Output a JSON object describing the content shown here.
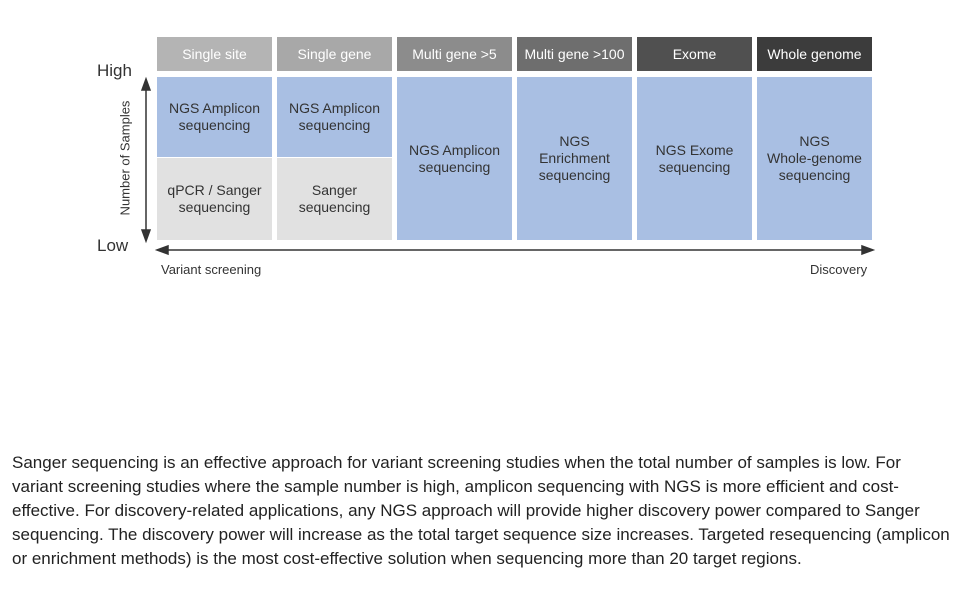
{
  "diagram": {
    "y_axis": {
      "high": "High",
      "low": "Low",
      "title": "Number of Samples"
    },
    "x_axis": {
      "left": "Variant screening",
      "right": "Discovery"
    },
    "columns": [
      {
        "header": "Single site",
        "header_color": "#b4b4b4",
        "top": "NGS Amplicon\nsequencing",
        "bottom": "qPCR / Sanger\nsequencing"
      },
      {
        "header": "Single gene",
        "header_color": "#a8a8a8",
        "top": "NGS Amplicon\nsequencing",
        "bottom": "Sanger\nsequencing"
      },
      {
        "header": "Multi gene >5",
        "header_color": "#8c8c8c",
        "full": "NGS Amplicon\nsequencing"
      },
      {
        "header": "Multi gene >100",
        "header_color": "#6e6e6e",
        "full": "NGS\nEnrichment\nsequencing"
      },
      {
        "header": "Exome",
        "header_color": "#505050",
        "full": "NGS Exome\nsequencing"
      },
      {
        "header": "Whole genome",
        "header_color": "#3c3c3c",
        "full": "NGS\nWhole-genome\nsequencing"
      }
    ]
  },
  "paragraph": "Sanger sequencing is an effective approach for variant screening studies when the total number of samples is low. For variant screening studies where the sample number is high, amplicon sequencing with NGS is more efficient and cost-effective. For discovery-related applications, any NGS approach will provide higher discovery power compared to Sanger sequencing. The discovery power will increase as the total target sequence size increases. Targeted resequencing (amplicon or enrichment methods) is the most cost-effective solution when sequencing more than 20 target regions."
}
